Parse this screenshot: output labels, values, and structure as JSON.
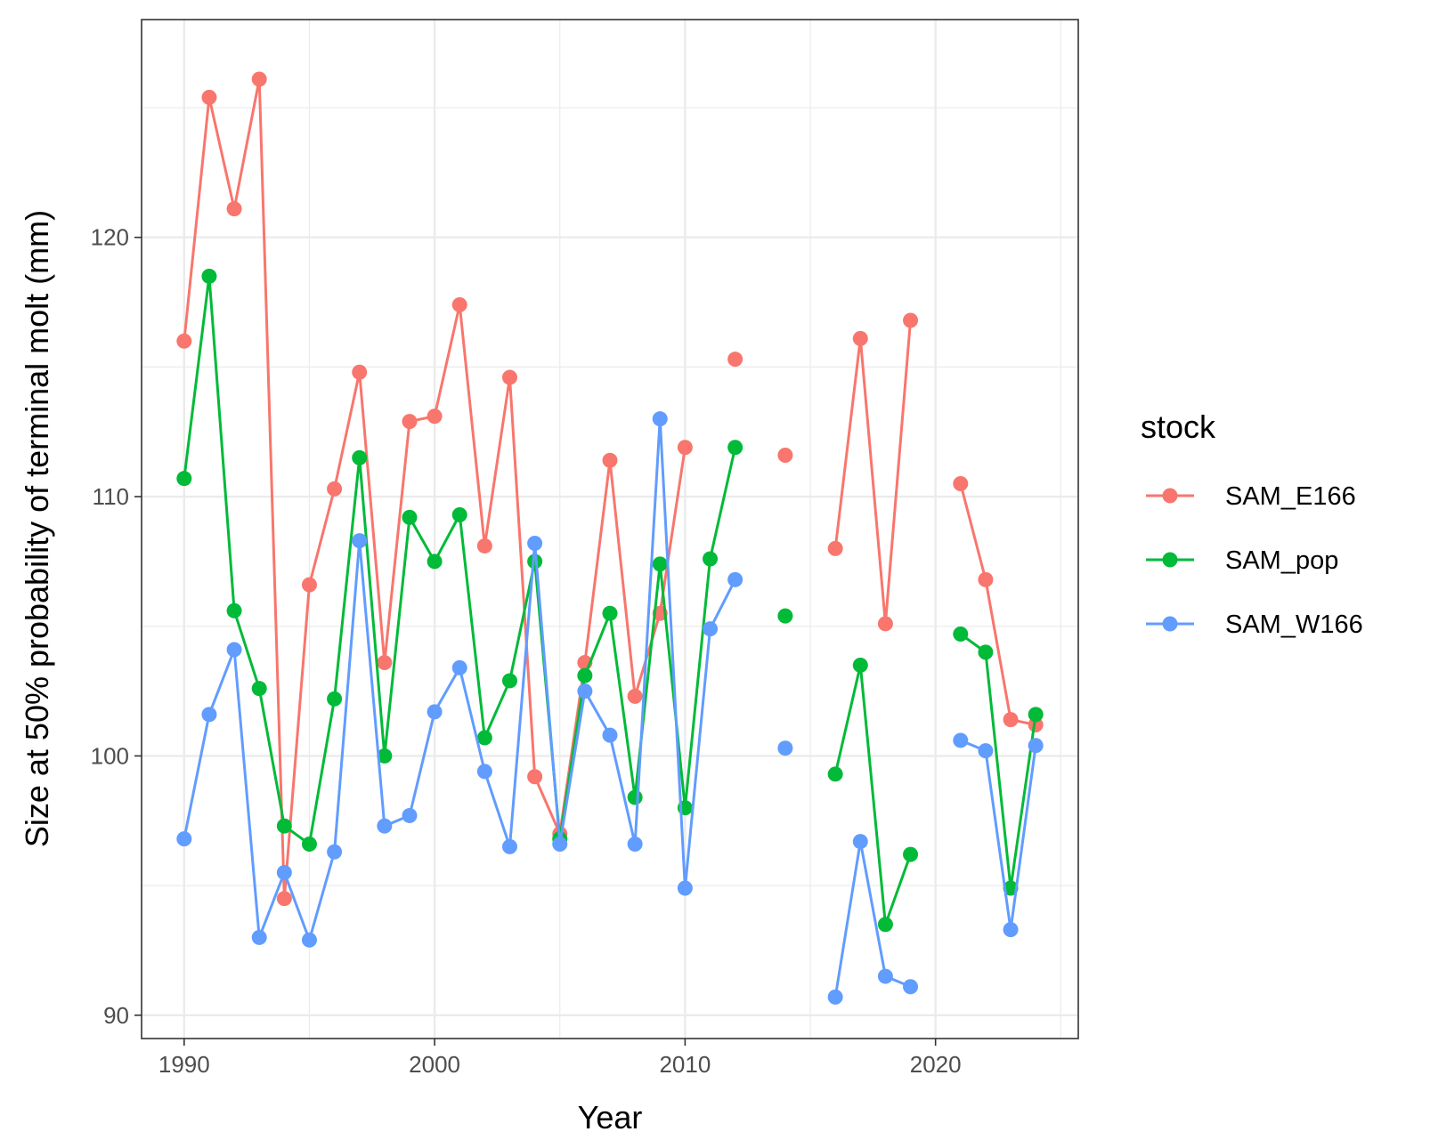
{
  "chart_data": {
    "type": "line",
    "title": "",
    "xlabel": "Year",
    "ylabel": "Size at 50% probability of terminal molt (mm)",
    "xlim": [
      1988.3,
      2025.7
    ],
    "ylim": [
      89.1,
      128.4
    ],
    "x_ticks": [
      1990,
      2000,
      2010,
      2020
    ],
    "y_ticks": [
      90,
      100,
      110,
      120
    ],
    "grid": true,
    "legend": {
      "title": "stock",
      "position": "right"
    },
    "series": [
      {
        "name": "SAM_E166",
        "color": "#F8766D",
        "points": [
          [
            1990,
            116.0
          ],
          [
            1991,
            125.4
          ],
          [
            1992,
            121.1
          ],
          [
            1993,
            126.1
          ],
          [
            1994,
            94.5
          ],
          [
            1995,
            106.6
          ],
          [
            1996,
            110.3
          ],
          [
            1997,
            114.8
          ],
          [
            1998,
            103.6
          ],
          [
            1999,
            112.9
          ],
          [
            2000,
            113.1
          ],
          [
            2001,
            117.4
          ],
          [
            2002,
            108.1
          ],
          [
            2003,
            114.6
          ],
          [
            2004,
            99.2
          ],
          [
            2005,
            97.0
          ],
          [
            2006,
            103.6
          ],
          [
            2007,
            111.4
          ],
          [
            2008,
            102.3
          ],
          [
            2009,
            105.5
          ],
          [
            2010,
            111.9
          ],
          [
            2011,
            null
          ],
          [
            2012,
            115.3
          ],
          [
            2013,
            null
          ],
          [
            2014,
            111.6
          ],
          [
            2015,
            null
          ],
          [
            2016,
            108.0
          ],
          [
            2017,
            116.1
          ],
          [
            2018,
            105.1
          ],
          [
            2019,
            116.8
          ],
          [
            2020,
            null
          ],
          [
            2021,
            110.5
          ],
          [
            2022,
            106.8
          ],
          [
            2023,
            101.4
          ],
          [
            2024,
            101.2
          ]
        ]
      },
      {
        "name": "SAM_pop",
        "color": "#00BA38",
        "points": [
          [
            1990,
            110.7
          ],
          [
            1991,
            118.5
          ],
          [
            1992,
            105.6
          ],
          [
            1993,
            102.6
          ],
          [
            1994,
            97.3
          ],
          [
            1995,
            96.6
          ],
          [
            1996,
            102.2
          ],
          [
            1997,
            111.5
          ],
          [
            1998,
            100.0
          ],
          [
            1999,
            109.2
          ],
          [
            2000,
            107.5
          ],
          [
            2001,
            109.3
          ],
          [
            2002,
            100.7
          ],
          [
            2003,
            102.9
          ],
          [
            2004,
            107.5
          ],
          [
            2005,
            96.8
          ],
          [
            2006,
            103.1
          ],
          [
            2007,
            105.5
          ],
          [
            2008,
            98.4
          ],
          [
            2009,
            107.4
          ],
          [
            2010,
            98.0
          ],
          [
            2011,
            107.6
          ],
          [
            2012,
            111.9
          ],
          [
            2013,
            null
          ],
          [
            2014,
            105.4
          ],
          [
            2015,
            null
          ],
          [
            2016,
            99.3
          ],
          [
            2017,
            103.5
          ],
          [
            2018,
            93.5
          ],
          [
            2019,
            96.2
          ],
          [
            2020,
            null
          ],
          [
            2021,
            104.7
          ],
          [
            2022,
            104.0
          ],
          [
            2023,
            94.9
          ],
          [
            2024,
            101.6
          ]
        ]
      },
      {
        "name": "SAM_W166",
        "color": "#619CFF",
        "points": [
          [
            1990,
            96.8
          ],
          [
            1991,
            101.6
          ],
          [
            1992,
            104.1
          ],
          [
            1993,
            93.0
          ],
          [
            1994,
            95.5
          ],
          [
            1995,
            92.9
          ],
          [
            1996,
            96.3
          ],
          [
            1997,
            108.3
          ],
          [
            1998,
            97.3
          ],
          [
            1999,
            97.7
          ],
          [
            2000,
            101.7
          ],
          [
            2001,
            103.4
          ],
          [
            2002,
            99.4
          ],
          [
            2003,
            96.5
          ],
          [
            2004,
            108.2
          ],
          [
            2005,
            96.6
          ],
          [
            2006,
            102.5
          ],
          [
            2007,
            100.8
          ],
          [
            2008,
            96.6
          ],
          [
            2009,
            113.0
          ],
          [
            2010,
            94.9
          ],
          [
            2011,
            104.9
          ],
          [
            2012,
            106.8
          ],
          [
            2013,
            null
          ],
          [
            2014,
            100.3
          ],
          [
            2015,
            null
          ],
          [
            2016,
            90.7
          ],
          [
            2017,
            96.7
          ],
          [
            2018,
            91.5
          ],
          [
            2019,
            91.1
          ],
          [
            2020,
            null
          ],
          [
            2021,
            100.6
          ],
          [
            2022,
            100.2
          ],
          [
            2023,
            93.3
          ],
          [
            2024,
            100.4
          ]
        ]
      }
    ]
  }
}
